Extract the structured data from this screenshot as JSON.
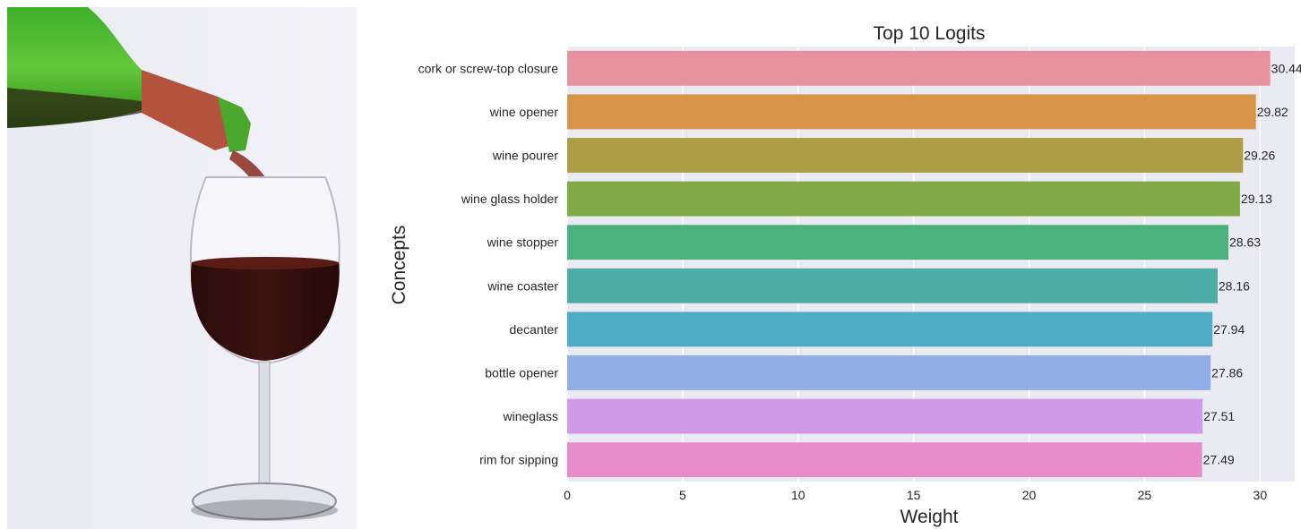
{
  "photo": {
    "subject": "red wine being poured from a green bottle into a wine glass"
  },
  "chart_data": {
    "type": "bar",
    "orientation": "horizontal",
    "title": "Top 10 Logits",
    "xlabel": "Weight",
    "ylabel": "Concepts",
    "xlim": [
      0,
      31.5
    ],
    "xticks": [
      0,
      5,
      10,
      15,
      20,
      25,
      30
    ],
    "grid": true,
    "categories": [
      "cork or screw-top closure",
      "wine opener",
      "wine pourer",
      "wine glass holder",
      "wine stopper",
      "wine coaster",
      "decanter",
      "bottle opener",
      "wineglass",
      "rim for sipping"
    ],
    "values": [
      30.44,
      29.82,
      29.26,
      29.13,
      28.63,
      28.16,
      27.94,
      27.86,
      27.51,
      27.49
    ],
    "value_labels": [
      "30.44",
      "29.82",
      "29.26",
      "29.13",
      "28.63",
      "28.16",
      "27.94",
      "27.86",
      "27.51",
      "27.49"
    ],
    "colors": [
      "#e8929f",
      "#d89349",
      "#ad9d45",
      "#7faa45",
      "#4bb17e",
      "#4eaca7",
      "#4facc4",
      "#92aee8",
      "#d09ae8",
      "#e68dca"
    ],
    "background": "#eaeaf2"
  }
}
